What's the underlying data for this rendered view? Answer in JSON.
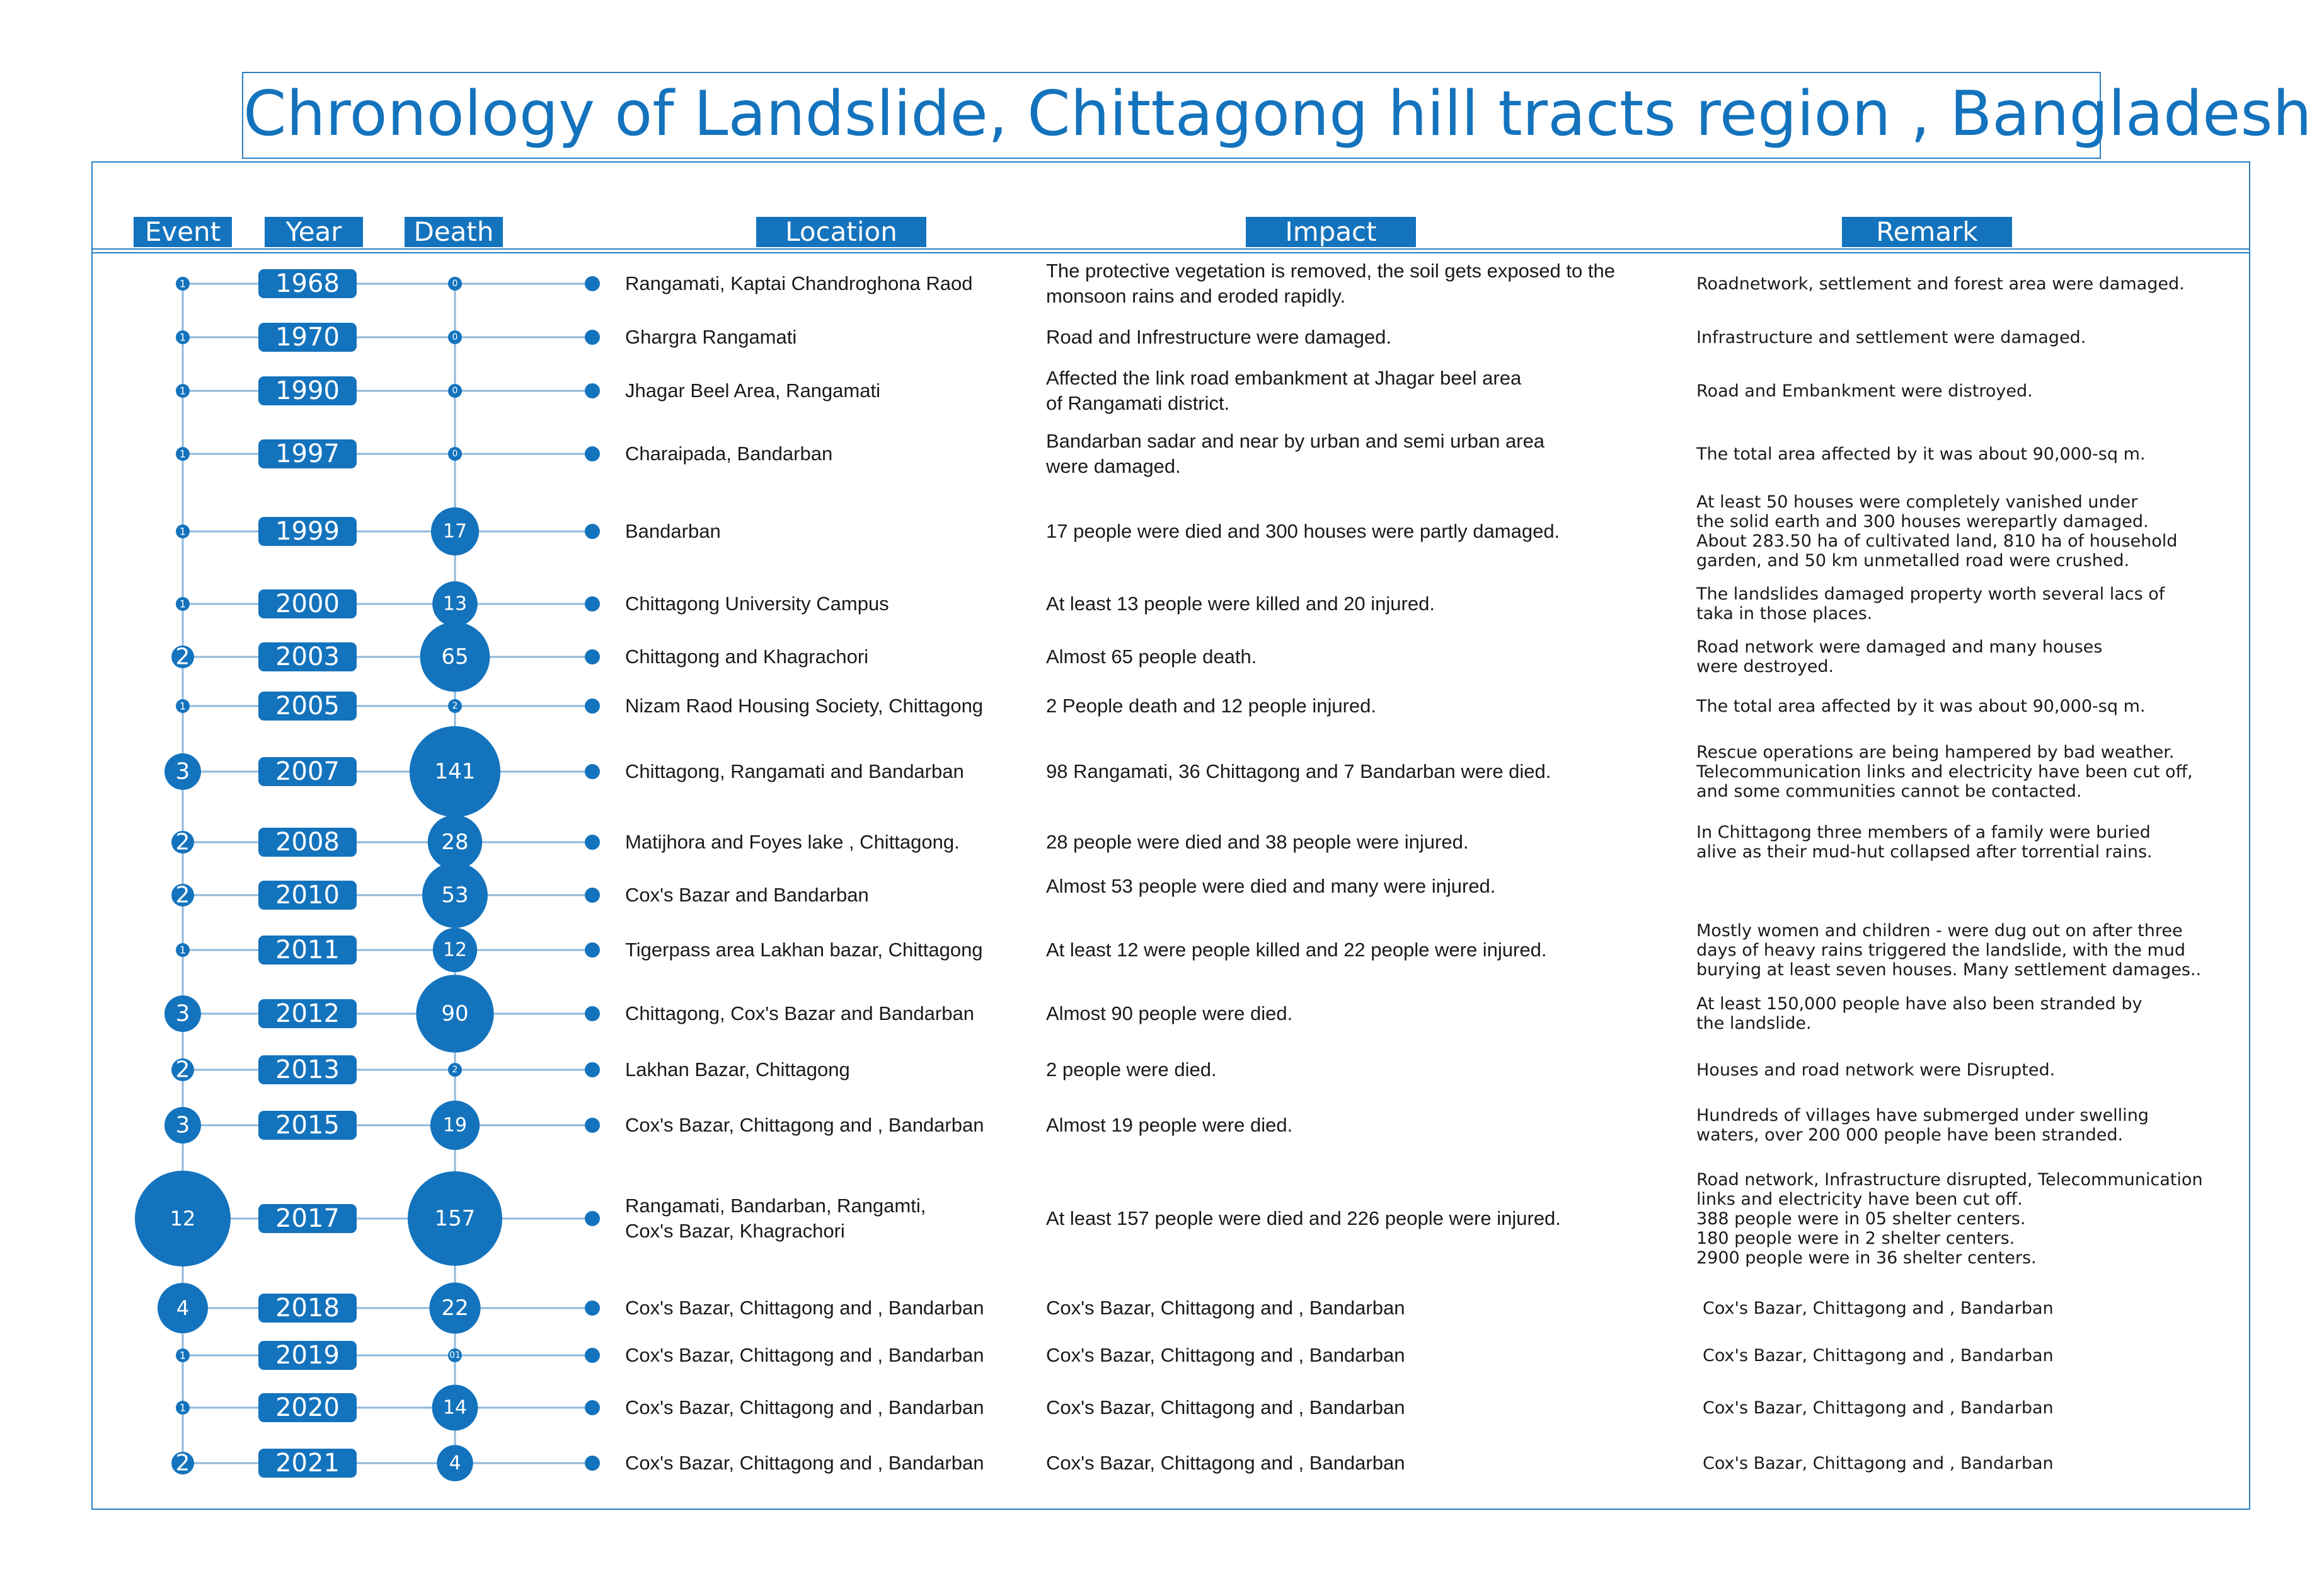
{
  "title": "Chronology of Landslide, Chittagong hill tracts region , Bangladesh",
  "headers": {
    "event": "Event",
    "year": "Year",
    "death": "Death",
    "location": "Location",
    "impact": "Impact",
    "remark": "Remark"
  },
  "colors": {
    "accent": "#1473bd",
    "line": "#8fb8dc",
    "frame": "#2b7fc3"
  },
  "chart_data": {
    "type": "table",
    "rows": [
      {
        "year": "1968",
        "event": 1,
        "event_label": "1",
        "death": 0,
        "death_label": "0",
        "location": [
          "Rangamati, Kaptai Chandroghona Raod"
        ],
        "impact": [
          "The protective vegetation is removed, the soil gets exposed to the",
          "monsoon rains and eroded rapidly."
        ],
        "remark": [
          "Roadnetwork, settlement and forest area were damaged."
        ]
      },
      {
        "year": "1970",
        "event": 1,
        "event_label": "1",
        "death": 0,
        "death_label": "0",
        "location": [
          "Ghargra Rangamati"
        ],
        "impact": [
          "Road and Infrestructure were damaged."
        ],
        "remark": [
          "Infrastructure and settlement were damaged."
        ]
      },
      {
        "year": "1990",
        "event": 1,
        "event_label": "1",
        "death": 0,
        "death_label": "0",
        "location": [
          "Jhagar Beel Area, Rangamati"
        ],
        "impact": [
          "Affected the link road embankment at Jhagar beel area",
          "of Rangamati district."
        ],
        "remark": [
          "Road and Embankment were distroyed."
        ]
      },
      {
        "year": "1997",
        "event": 1,
        "event_label": "1",
        "death": 0,
        "death_label": "0",
        "location": [
          "Charaipada, Bandarban"
        ],
        "impact": [
          "Bandarban sadar and near by  urban and semi urban area",
          "were damaged."
        ],
        "remark": [
          "The total area affected by it was about 90,000-sq m."
        ]
      },
      {
        "year": "1999",
        "event": 1,
        "event_label": "1",
        "death": 17,
        "death_label": "17",
        "location": [
          "Bandarban"
        ],
        "impact": [
          "17 people were died and 300 houses were partly damaged."
        ],
        "remark": [
          "At least 50 houses were completely vanished under",
          "the solid earth and 300 houses werepartly damaged.",
          "About 283.50 ha of cultivated land, 810 ha of household",
          "garden, and 50 km unmetalled road were crushed."
        ]
      },
      {
        "year": "2000",
        "event": 1,
        "event_label": "1",
        "death": 13,
        "death_label": "13",
        "location": [
          "Chittagong University Campus"
        ],
        "impact": [
          "At least 13 people were killed and 20 injured."
        ],
        "remark": [
          "The landslides damaged property worth several lacs of",
          "taka in those places."
        ]
      },
      {
        "year": "2003",
        "event": 2,
        "event_label": "2",
        "death": 65,
        "death_label": "65",
        "location": [
          "Chittagong and Khagrachori"
        ],
        "impact": [
          "Almost 65 people death."
        ],
        "remark": [
          "Road network were damaged and many houses",
          "were destroyed."
        ]
      },
      {
        "year": "2005",
        "event": 1,
        "event_label": "1",
        "death": 2,
        "death_label": "2",
        "location": [
          "Nizam Raod Housing Society, Chittagong"
        ],
        "impact": [
          "2 People death and 12 people injured."
        ],
        "remark": [
          "The total area affected by it was about 90,000-sq m."
        ]
      },
      {
        "year": "2007",
        "event": 3,
        "event_label": "3",
        "death": 141,
        "death_label": "141",
        "location": [
          "Chittagong, Rangamati and Bandarban"
        ],
        "impact": [
          "98 Rangamati, 36 Chittagong and 7 Bandarban were died."
        ],
        "remark": [
          "Rescue operations are being hampered by bad weather.",
          "Telecommunication links and electricity have been cut off,",
          "and some communities cannot be contacted."
        ]
      },
      {
        "year": "2008",
        "event": 2,
        "event_label": "2",
        "death": 28,
        "death_label": "28",
        "location": [
          "Matijhora and Foyes lake , Chittagong."
        ],
        "impact": [
          "28 people were died and 38 people were injured."
        ],
        "remark": [
          "In Chittagong three members of a family were buried",
          "alive as their mud-hut collapsed after torrential rains."
        ]
      },
      {
        "year": "2010",
        "event": 2,
        "event_label": "2",
        "death": 53,
        "death_label": "53",
        "location": [
          "Cox's Bazar and Bandarban"
        ],
        "impact": [
          "Almost 53 people were died and many were injured."
        ],
        "remark": []
      },
      {
        "year": "2011",
        "event": 1,
        "event_label": "1",
        "death": 12,
        "death_label": "12",
        "location": [
          "Tigerpass area Lakhan bazar, Chittagong"
        ],
        "impact": [
          "At least 12 were people killed and 22 people were injured."
        ],
        "remark": [
          "Mostly women and children - were dug out on after three",
          "days of heavy rains triggered the landslide, with the mud",
          " burying at least seven houses. Many settlement damages.."
        ]
      },
      {
        "year": "2012",
        "event": 3,
        "event_label": "3",
        "death": 90,
        "death_label": "90",
        "location": [
          "Chittagong, Cox's Bazar and Bandarban"
        ],
        "impact": [
          "Almost 90 people were died."
        ],
        "remark": [
          "At least 150,000 people have also been stranded by",
          "the landslide."
        ]
      },
      {
        "year": "2013",
        "event": 2,
        "event_label": "2",
        "death": 2,
        "death_label": "2",
        "location": [
          "Lakhan Bazar, Chittagong"
        ],
        "impact": [
          "2 people were died."
        ],
        "remark": [
          "Houses and road network were Disrupted."
        ]
      },
      {
        "year": "2015",
        "event": 3,
        "event_label": "3",
        "death": 19,
        "death_label": "19",
        "location": [
          "Cox's Bazar, Chittagong and , Bandarban"
        ],
        "impact": [
          "Almost 19 people were died."
        ],
        "remark": [
          "Hundreds of villages have submerged under swelling",
          "waters, over 200 000 people have been stranded."
        ]
      },
      {
        "year": "2017",
        "event": 12,
        "event_label": "12",
        "death": 157,
        "death_label": "157",
        "location": [
          "Rangamati, Bandarban, Rangamti,",
          "Cox's Bazar, Khagrachori"
        ],
        "impact": [
          "At least 157 people were died and 226 people were injured."
        ],
        "remark": [
          "Road network, Infrastructure disrupted, Telecommunication",
          "links and electricity  have been cut off.",
          "388 people were in 05 shelter centers.",
          "180 people were in 2 shelter centers.",
          "2900 people were in 36 shelter centers."
        ]
      },
      {
        "year": "2018",
        "event": 4,
        "event_label": "4",
        "death": 22,
        "death_label": "22",
        "location": [
          "Cox's Bazar, Chittagong and , Bandarban"
        ],
        "impact": [
          "Cox's Bazar, Chittagong and , Bandarban"
        ],
        "remark": [
          "Cox's Bazar, Chittagong and , Bandarban"
        ]
      },
      {
        "year": "2019",
        "event": 1,
        "event_label": "1",
        "death": 1,
        "death_label": "01",
        "location": [
          "Cox's Bazar, Chittagong and , Bandarban"
        ],
        "impact": [
          "Cox's Bazar, Chittagong and , Bandarban"
        ],
        "remark": [
          "Cox's Bazar, Chittagong and , Bandarban"
        ]
      },
      {
        "year": "2020",
        "event": 1,
        "event_label": "1",
        "death": 14,
        "death_label": "14",
        "location": [
          "Cox's Bazar, Chittagong and , Bandarban"
        ],
        "impact": [
          "Cox's Bazar, Chittagong and , Bandarban"
        ],
        "remark": [
          "Cox's Bazar, Chittagong and , Bandarban"
        ]
      },
      {
        "year": "2021",
        "event": 2,
        "event_label": "2",
        "death": 4,
        "death_label": "4",
        "location": [
          "Cox's Bazar, Chittagong and , Bandarban"
        ],
        "impact": [
          "Cox's Bazar, Chittagong and , Bandarban"
        ],
        "remark": [
          "Cox's Bazar, Chittagong and , Bandarban"
        ]
      }
    ]
  }
}
